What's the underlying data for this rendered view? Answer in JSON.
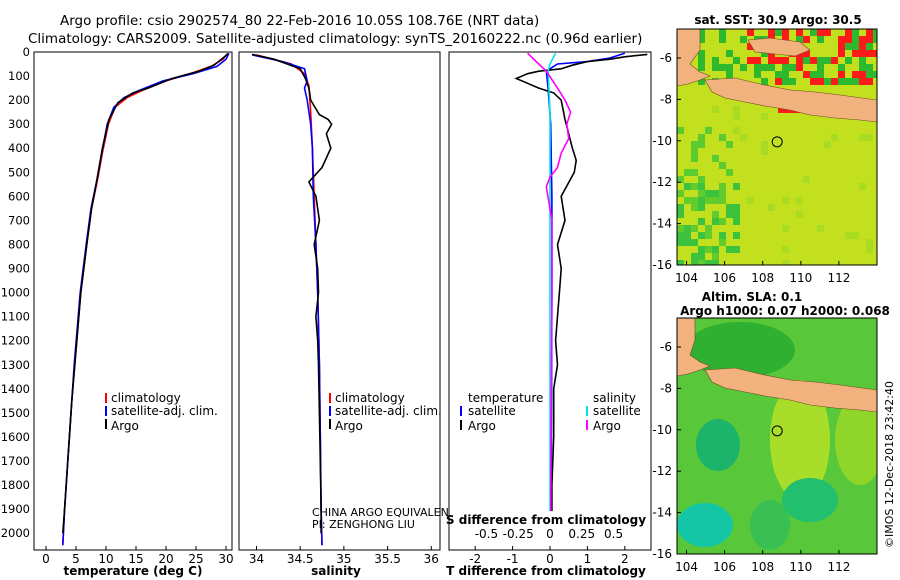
{
  "header": {
    "line1": "Argo profile: csio 2902574_80 22-Feb-2016 10.05S 108.76E (NRT data)",
    "line2": "Climatology: CARS2009. Satellite-adjusted climatology: synTS_20160222.nc (0.96d earlier)"
  },
  "colors": {
    "climatology": "#ff0000",
    "satellite": "#0000ff",
    "argo": "#000000",
    "sal_sat": "#00e5e5",
    "sal_argo": "#ff00ff",
    "land": "#f2b27e",
    "stamp": "#333333"
  },
  "depth_axis": {
    "ticks": [
      0,
      100,
      200,
      300,
      400,
      500,
      600,
      700,
      800,
      900,
      1000,
      1100,
      1200,
      1300,
      1400,
      1500,
      1600,
      1700,
      1800,
      1900,
      2000
    ],
    "ylim": [
      0,
      2070
    ]
  },
  "chart_data": [
    {
      "id": "temperature",
      "type": "line",
      "xlabel": "temperature (deg C)",
      "ylabel": "",
      "xlim": [
        -2,
        31
      ],
      "ylim": [
        2070,
        0
      ],
      "xticks": [
        0,
        5,
        10,
        15,
        20,
        25,
        30
      ],
      "legend": [
        "climatology",
        "satellite-adj. clim.",
        "Argo"
      ],
      "series": [
        {
          "name": "climatology",
          "color": "#ff0000",
          "points": [
            [
              30.3,
              5
            ],
            [
              29.5,
              30
            ],
            [
              27.5,
              60
            ],
            [
              24,
              90
            ],
            [
              20,
              120
            ],
            [
              16,
              160
            ],
            [
              13.5,
              190
            ],
            [
              11.5,
              230
            ],
            [
              10.4,
              300
            ],
            [
              9.4,
              420
            ],
            [
              8.6,
              530
            ],
            [
              7.6,
              650
            ],
            [
              6.9,
              780
            ],
            [
              6.3,
              900
            ],
            [
              5.8,
              1000
            ],
            [
              5.3,
              1150
            ],
            [
              4.8,
              1300
            ],
            [
              4.3,
              1450
            ],
            [
              3.9,
              1600
            ],
            [
              3.5,
              1750
            ],
            [
              3.1,
              1900
            ],
            [
              2.8,
              2050
            ]
          ]
        },
        {
          "name": "satellite-adj. clim.",
          "color": "#0000ff",
          "points": [
            [
              30.5,
              5
            ],
            [
              30,
              30
            ],
            [
              28.5,
              60
            ],
            [
              24.5,
              90
            ],
            [
              19.5,
              120
            ],
            [
              15.5,
              160
            ],
            [
              13,
              190
            ],
            [
              11.3,
              230
            ],
            [
              10.2,
              300
            ],
            [
              9.3,
              420
            ],
            [
              8.5,
              530
            ],
            [
              7.5,
              650
            ],
            [
              6.8,
              780
            ],
            [
              6.2,
              900
            ],
            [
              5.7,
              1000
            ],
            [
              5.2,
              1150
            ],
            [
              4.7,
              1300
            ],
            [
              4.3,
              1450
            ],
            [
              3.9,
              1600
            ],
            [
              3.5,
              1750
            ],
            [
              3.1,
              1900
            ],
            [
              2.8,
              2050
            ]
          ]
        },
        {
          "name": "Argo",
          "color": "#000000",
          "points": [
            [
              30.3,
              8
            ],
            [
              29.5,
              25
            ],
            [
              28,
              55
            ],
            [
              25.5,
              80
            ],
            [
              21,
              110
            ],
            [
              17,
              150
            ],
            [
              14.5,
              170
            ],
            [
              12,
              210
            ],
            [
              10.5,
              280
            ],
            [
              9.4,
              400
            ],
            [
              8.5,
              530
            ],
            [
              7.6,
              650
            ],
            [
              6.9,
              780
            ],
            [
              6.3,
              900
            ],
            [
              5.8,
              1000
            ],
            [
              5.3,
              1150
            ],
            [
              4.8,
              1300
            ],
            [
              4.3,
              1450
            ],
            [
              3.9,
              1600
            ],
            [
              3.5,
              1750
            ],
            [
              3.1,
              1900
            ],
            [
              2.8,
              2000
            ]
          ]
        }
      ]
    },
    {
      "id": "salinity",
      "type": "line",
      "xlabel": "salinity",
      "ylabel": "",
      "xlim": [
        33.8,
        36.1
      ],
      "ylim": [
        2070,
        0
      ],
      "xticks": [
        34,
        34.5,
        35,
        35.5,
        36
      ],
      "xticklabels": [
        "34",
        "34.5",
        "35",
        "35.5",
        "36"
      ],
      "legend": [
        "climatology",
        "satellite-adj. clim.",
        "Argo"
      ],
      "annotation": [
        "CHINA ARGO EQUIVALENT",
        "PI: ZENGHONG LIU"
      ],
      "series": [
        {
          "name": "climatology",
          "color": "#ff0000",
          "points": [
            [
              34.0,
              12
            ],
            [
              34.4,
              50
            ],
            [
              34.55,
              90
            ],
            [
              34.6,
              140
            ],
            [
              34.62,
              250
            ],
            [
              34.64,
              400
            ],
            [
              34.66,
              600
            ],
            [
              34.68,
              800
            ],
            [
              34.7,
              1000
            ],
            [
              34.72,
              1300
            ],
            [
              34.73,
              1600
            ],
            [
              34.74,
              1900
            ],
            [
              34.75,
              2050
            ]
          ]
        },
        {
          "name": "satellite-adj. clim.",
          "color": "#0000ff",
          "points": [
            [
              33.95,
              12
            ],
            [
              34.3,
              40
            ],
            [
              34.55,
              70
            ],
            [
              34.58,
              120
            ],
            [
              34.55,
              150
            ],
            [
              34.58,
              200
            ],
            [
              34.62,
              300
            ],
            [
              34.64,
              400
            ],
            [
              34.65,
              600
            ],
            [
              34.68,
              800
            ],
            [
              34.7,
              1000
            ],
            [
              34.72,
              1300
            ],
            [
              34.73,
              1600
            ],
            [
              34.74,
              1900
            ],
            [
              34.75,
              2050
            ]
          ]
        },
        {
          "name": "Argo",
          "color": "#000000",
          "points": [
            [
              33.95,
              10
            ],
            [
              34.2,
              30
            ],
            [
              34.5,
              70
            ],
            [
              34.56,
              110
            ],
            [
              34.6,
              150
            ],
            [
              34.62,
              200
            ],
            [
              34.72,
              260
            ],
            [
              34.82,
              280
            ],
            [
              34.86,
              300
            ],
            [
              34.8,
              340
            ],
            [
              34.85,
              400
            ],
            [
              34.75,
              480
            ],
            [
              34.6,
              540
            ],
            [
              34.68,
              600
            ],
            [
              34.72,
              700
            ],
            [
              34.66,
              800
            ],
            [
              34.7,
              900
            ],
            [
              34.71,
              1000
            ],
            [
              34.68,
              1100
            ],
            [
              34.7,
              1200
            ],
            [
              34.71,
              1300
            ],
            [
              34.72,
              1500
            ],
            [
              34.73,
              1700
            ],
            [
              34.74,
              1900
            ],
            [
              34.74,
              2000
            ]
          ]
        }
      ]
    },
    {
      "id": "differences",
      "type": "line",
      "xlabel": "T difference from climatology",
      "secondary_xlabel": "S difference from climatology",
      "xlim": [
        -2.7,
        2.7
      ],
      "ylim": [
        2070,
        0
      ],
      "xticks": [
        -2,
        -1,
        0,
        1,
        2
      ],
      "xticklabels": [
        "-2",
        "-1",
        "0",
        "1",
        "2"
      ],
      "secondary_xticks": [
        -0.5,
        -0.25,
        0,
        0.25,
        0.5
      ],
      "secondary_xticklabels": [
        "-0.5",
        "-0.25",
        "0",
        "0.25",
        "0.5"
      ],
      "legend_titles": [
        "temperature",
        "salinity"
      ],
      "legend_left": [
        "satellite",
        "Argo"
      ],
      "legend_right": [
        "satellite",
        "Argo"
      ],
      "series": [
        {
          "name": "T satellite",
          "color": "#0000ff",
          "points": [
            [
              2.0,
              5
            ],
            [
              1.6,
              25
            ],
            [
              1.0,
              40
            ],
            [
              0.2,
              50
            ],
            [
              -0.1,
              80
            ],
            [
              -0.05,
              150
            ],
            [
              0.02,
              300
            ],
            [
              0.05,
              600
            ],
            [
              0.05,
              1000
            ],
            [
              0.04,
              1500
            ],
            [
              0.03,
              2000
            ]
          ]
        },
        {
          "name": "T Argo",
          "color": "#000000",
          "points": [
            [
              2.6,
              10
            ],
            [
              2.0,
              20
            ],
            [
              1.6,
              30
            ],
            [
              1.0,
              40
            ],
            [
              0.6,
              55
            ],
            [
              0.3,
              70
            ],
            [
              -0.3,
              80
            ],
            [
              -0.6,
              90
            ],
            [
              -0.9,
              110
            ],
            [
              -0.6,
              130
            ],
            [
              -0.3,
              150
            ],
            [
              0.1,
              170
            ],
            [
              0.3,
              200
            ],
            [
              0.4,
              280
            ],
            [
              0.5,
              340
            ],
            [
              0.6,
              400
            ],
            [
              0.7,
              450
            ],
            [
              0.65,
              500
            ],
            [
              0.3,
              600
            ],
            [
              0.4,
              700
            ],
            [
              0.2,
              800
            ],
            [
              0.3,
              900
            ],
            [
              0.25,
              1000
            ],
            [
              0.2,
              1100
            ],
            [
              0.15,
              1200
            ],
            [
              0.2,
              1300
            ],
            [
              0.1,
              1400
            ],
            [
              0.1,
              1600
            ],
            [
              0.05,
              1800
            ],
            [
              0.05,
              2000
            ]
          ]
        },
        {
          "name": "S satellite",
          "color": "#00e5e5",
          "points": [
            [
              0.15,
              5
            ],
            [
              0.1,
              20
            ],
            [
              0.0,
              50
            ],
            [
              -0.05,
              80
            ],
            [
              -0.03,
              150
            ],
            [
              0.0,
              250
            ],
            [
              0.0,
              500
            ],
            [
              0.0,
              1000
            ],
            [
              0.0,
              1500
            ],
            [
              0.0,
              1900
            ],
            [
              0.0,
              2000
            ]
          ]
        },
        {
          "name": "S Argo",
          "color": "#ff00ff",
          "points": [
            [
              -0.6,
              5
            ],
            [
              -0.5,
              20
            ],
            [
              -0.3,
              50
            ],
            [
              -0.1,
              80
            ],
            [
              0.2,
              150
            ],
            [
              0.4,
              200
            ],
            [
              0.55,
              250
            ],
            [
              0.45,
              300
            ],
            [
              0.5,
              360
            ],
            [
              0.3,
              420
            ],
            [
              0.2,
              480
            ],
            [
              0.0,
              520
            ],
            [
              -0.1,
              560
            ],
            [
              0.05,
              700
            ],
            [
              0.05,
              1000
            ],
            [
              0.03,
              1500
            ],
            [
              0.02,
              2000
            ]
          ]
        }
      ]
    },
    {
      "id": "sst_map",
      "type": "heatmap",
      "title": "sat. SST: 30.9 Argo: 30.5",
      "xlim": [
        103.5,
        114
      ],
      "ylim": [
        -16,
        -4.6
      ],
      "xticks": [
        104,
        106,
        108,
        110,
        112
      ],
      "yticks": [
        -6,
        -8,
        -10,
        -12,
        -14,
        -16
      ],
      "argo_position": [
        108.76,
        -10.05
      ]
    },
    {
      "id": "sla_map",
      "type": "heatmap",
      "title": "Altim. SLA: 0.1",
      "subtitle": "Argo h1000: 0.07 h2000: 0.068",
      "xlim": [
        103.5,
        114
      ],
      "ylim": [
        -16,
        -4.6
      ],
      "xticks": [
        104,
        106,
        108,
        110,
        112
      ],
      "yticks": [
        -6,
        -8,
        -10,
        -12,
        -14,
        -16
      ],
      "argo_position": [
        108.76,
        -10.05
      ]
    }
  ],
  "stamp": "©IMOS 12-Dec-2018 23:42:40"
}
